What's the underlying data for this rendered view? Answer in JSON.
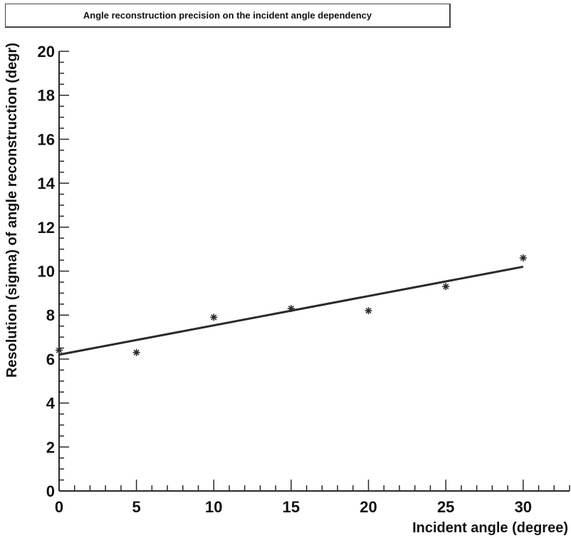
{
  "chart_data": {
    "type": "scatter",
    "title": "Angle reconstruction precision on the incident angle dependency",
    "xlabel": "Incident angle (degree)",
    "ylabel": "Resolution (sigma) of angle reconstruction (degr)",
    "xlim": [
      0,
      33
    ],
    "ylim": [
      0,
      20
    ],
    "x_ticks": [
      0,
      5,
      10,
      15,
      20,
      25,
      30
    ],
    "y_ticks": [
      0,
      2,
      4,
      6,
      8,
      10,
      12,
      14,
      16,
      18,
      20
    ],
    "grid": false,
    "series": [
      {
        "x": [
          0,
          5,
          10,
          15,
          20,
          25,
          30
        ],
        "y": [
          6.4,
          6.3,
          7.9,
          8.3,
          8.2,
          9.3,
          10.6
        ],
        "marker": "star"
      }
    ],
    "fit_line": {
      "x": [
        0,
        30
      ],
      "y": [
        6.2,
        10.2
      ]
    },
    "colors": {
      "ink": "#2a2a2a"
    }
  }
}
